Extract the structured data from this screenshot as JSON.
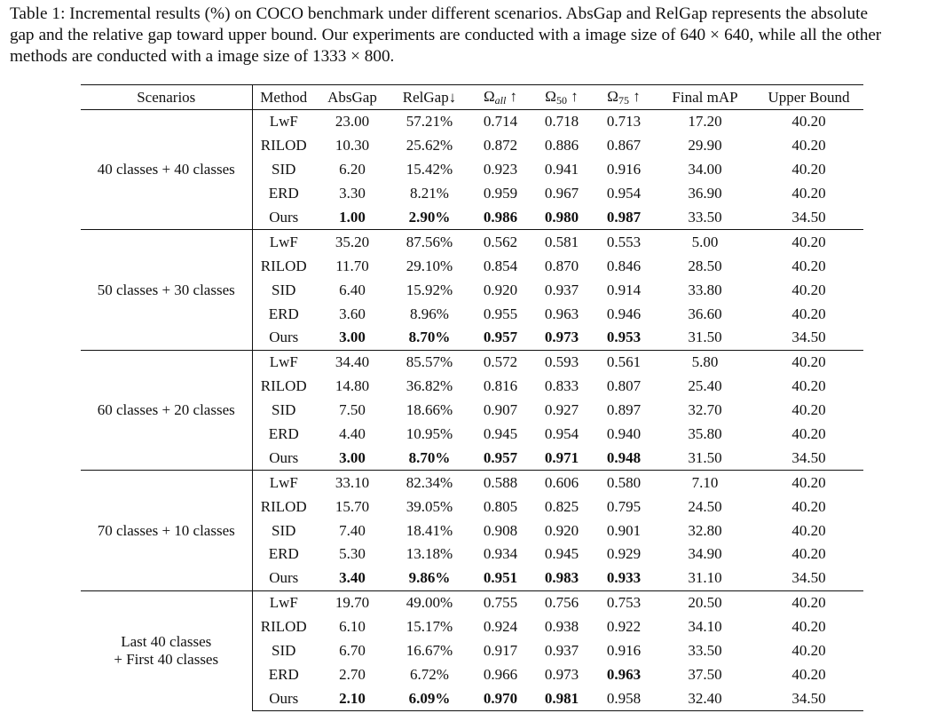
{
  "caption": {
    "lines": [
      "Table 1: Incremental results (%) on COCO benchmark under different scenarios. AbsGap and RelGap represents the absolute",
      "gap and the relative gap toward upper bound. Our experiments are conducted with a image size of 640 × 640, while all the other",
      "methods are conducted with a image size of 1333 × 800."
    ]
  },
  "table": {
    "headers": {
      "scenarios": "Scenarios",
      "method": "Method",
      "absgap": "AbsGap",
      "relgap": "RelGap↓",
      "omega": "Ω",
      "arrow": "↑",
      "sub_all": "all",
      "sub_50": "50",
      "sub_75": "75",
      "final": "Final mAP",
      "upper": "Upper Bound"
    },
    "groups": [
      {
        "scenario_lines": [
          "40 classes + 40 classes"
        ],
        "rows": [
          {
            "method": "LwF",
            "absgap": "23.00",
            "relgap": "57.21%",
            "o_all": "0.714",
            "o_50": "0.718",
            "o_75": "0.713",
            "final": "17.20",
            "upper": "40.20",
            "bold": []
          },
          {
            "method": "RILOD",
            "absgap": "10.30",
            "relgap": "25.62%",
            "o_all": "0.872",
            "o_50": "0.886",
            "o_75": "0.867",
            "final": "29.90",
            "upper": "40.20",
            "bold": []
          },
          {
            "method": "SID",
            "absgap": "6.20",
            "relgap": "15.42%",
            "o_all": "0.923",
            "o_50": "0.941",
            "o_75": "0.916",
            "final": "34.00",
            "upper": "40.20",
            "bold": []
          },
          {
            "method": "ERD",
            "absgap": "3.30",
            "relgap": "8.21%",
            "o_all": "0.959",
            "o_50": "0.967",
            "o_75": "0.954",
            "final": "36.90",
            "upper": "40.20",
            "bold": []
          },
          {
            "method": "Ours",
            "absgap": "1.00",
            "relgap": "2.90%",
            "o_all": "0.986",
            "o_50": "0.980",
            "o_75": "0.987",
            "final": "33.50",
            "upper": "34.50",
            "bold": [
              "absgap",
              "relgap",
              "o_all",
              "o_50",
              "o_75"
            ]
          }
        ]
      },
      {
        "scenario_lines": [
          "50 classes + 30 classes"
        ],
        "rows": [
          {
            "method": "LwF",
            "absgap": "35.20",
            "relgap": "87.56%",
            "o_all": "0.562",
            "o_50": "0.581",
            "o_75": "0.553",
            "final": "5.00",
            "upper": "40.20",
            "bold": []
          },
          {
            "method": "RILOD",
            "absgap": "11.70",
            "relgap": "29.10%",
            "o_all": "0.854",
            "o_50": "0.870",
            "o_75": "0.846",
            "final": "28.50",
            "upper": "40.20",
            "bold": []
          },
          {
            "method": "SID",
            "absgap": "6.40",
            "relgap": "15.92%",
            "o_all": "0.920",
            "o_50": "0.937",
            "o_75": "0.914",
            "final": "33.80",
            "upper": "40.20",
            "bold": []
          },
          {
            "method": "ERD",
            "absgap": "3.60",
            "relgap": "8.96%",
            "o_all": "0.955",
            "o_50": "0.963",
            "o_75": "0.946",
            "final": "36.60",
            "upper": "40.20",
            "bold": []
          },
          {
            "method": "Ours",
            "absgap": "3.00",
            "relgap": "8.70%",
            "o_all": "0.957",
            "o_50": "0.973",
            "o_75": "0.953",
            "final": "31.50",
            "upper": "34.50",
            "bold": [
              "absgap",
              "relgap",
              "o_all",
              "o_50",
              "o_75"
            ]
          }
        ]
      },
      {
        "scenario_lines": [
          "60 classes + 20 classes"
        ],
        "rows": [
          {
            "method": "LwF",
            "absgap": "34.40",
            "relgap": "85.57%",
            "o_all": "0.572",
            "o_50": "0.593",
            "o_75": "0.561",
            "final": "5.80",
            "upper": "40.20",
            "bold": []
          },
          {
            "method": "RILOD",
            "absgap": "14.80",
            "relgap": "36.82%",
            "o_all": "0.816",
            "o_50": "0.833",
            "o_75": "0.807",
            "final": "25.40",
            "upper": "40.20",
            "bold": []
          },
          {
            "method": "SID",
            "absgap": "7.50",
            "relgap": "18.66%",
            "o_all": "0.907",
            "o_50": "0.927",
            "o_75": "0.897",
            "final": "32.70",
            "upper": "40.20",
            "bold": []
          },
          {
            "method": "ERD",
            "absgap": "4.40",
            "relgap": "10.95%",
            "o_all": "0.945",
            "o_50": "0.954",
            "o_75": "0.940",
            "final": "35.80",
            "upper": "40.20",
            "bold": []
          },
          {
            "method": "Ours",
            "absgap": "3.00",
            "relgap": "8.70%",
            "o_all": "0.957",
            "o_50": "0.971",
            "o_75": "0.948",
            "final": "31.50",
            "upper": "34.50",
            "bold": [
              "absgap",
              "relgap",
              "o_all",
              "o_50",
              "o_75"
            ]
          }
        ]
      },
      {
        "scenario_lines": [
          "70 classes + 10 classes"
        ],
        "rows": [
          {
            "method": "LwF",
            "absgap": "33.10",
            "relgap": "82.34%",
            "o_all": "0.588",
            "o_50": "0.606",
            "o_75": "0.580",
            "final": "7.10",
            "upper": "40.20",
            "bold": []
          },
          {
            "method": "RILOD",
            "absgap": "15.70",
            "relgap": "39.05%",
            "o_all": "0.805",
            "o_50": "0.825",
            "o_75": "0.795",
            "final": "24.50",
            "upper": "40.20",
            "bold": []
          },
          {
            "method": "SID",
            "absgap": "7.40",
            "relgap": "18.41%",
            "o_all": "0.908",
            "o_50": "0.920",
            "o_75": "0.901",
            "final": "32.80",
            "upper": "40.20",
            "bold": []
          },
          {
            "method": "ERD",
            "absgap": "5.30",
            "relgap": "13.18%",
            "o_all": "0.934",
            "o_50": "0.945",
            "o_75": "0.929",
            "final": "34.90",
            "upper": "40.20",
            "bold": []
          },
          {
            "method": "Ours",
            "absgap": "3.40",
            "relgap": "9.86%",
            "o_all": "0.951",
            "o_50": "0.983",
            "o_75": "0.933",
            "final": "31.10",
            "upper": "34.50",
            "bold": [
              "absgap",
              "relgap",
              "o_all",
              "o_50",
              "o_75"
            ]
          }
        ]
      },
      {
        "scenario_lines": [
          "Last 40 classes",
          "+ First 40 classes"
        ],
        "rows": [
          {
            "method": "LwF",
            "absgap": "19.70",
            "relgap": "49.00%",
            "o_all": "0.755",
            "o_50": "0.756",
            "o_75": "0.753",
            "final": "20.50",
            "upper": "40.20",
            "bold": []
          },
          {
            "method": "RILOD",
            "absgap": "6.10",
            "relgap": "15.17%",
            "o_all": "0.924",
            "o_50": "0.938",
            "o_75": "0.922",
            "final": "34.10",
            "upper": "40.20",
            "bold": []
          },
          {
            "method": "SID",
            "absgap": "6.70",
            "relgap": "16.67%",
            "o_all": "0.917",
            "o_50": "0.937",
            "o_75": "0.916",
            "final": "33.50",
            "upper": "40.20",
            "bold": []
          },
          {
            "method": "ERD",
            "absgap": "2.70",
            "relgap": "6.72%",
            "o_all": "0.966",
            "o_50": "0.973",
            "o_75": "0.963",
            "final": "37.50",
            "upper": "40.20",
            "bold": [
              "o_75"
            ]
          },
          {
            "method": "Ours",
            "absgap": "2.10",
            "relgap": "6.09%",
            "o_all": "0.970",
            "o_50": "0.981",
            "o_75": "0.958",
            "final": "32.40",
            "upper": "34.50",
            "bold": [
              "absgap",
              "relgap",
              "o_all",
              "o_50"
            ]
          }
        ]
      }
    ]
  }
}
